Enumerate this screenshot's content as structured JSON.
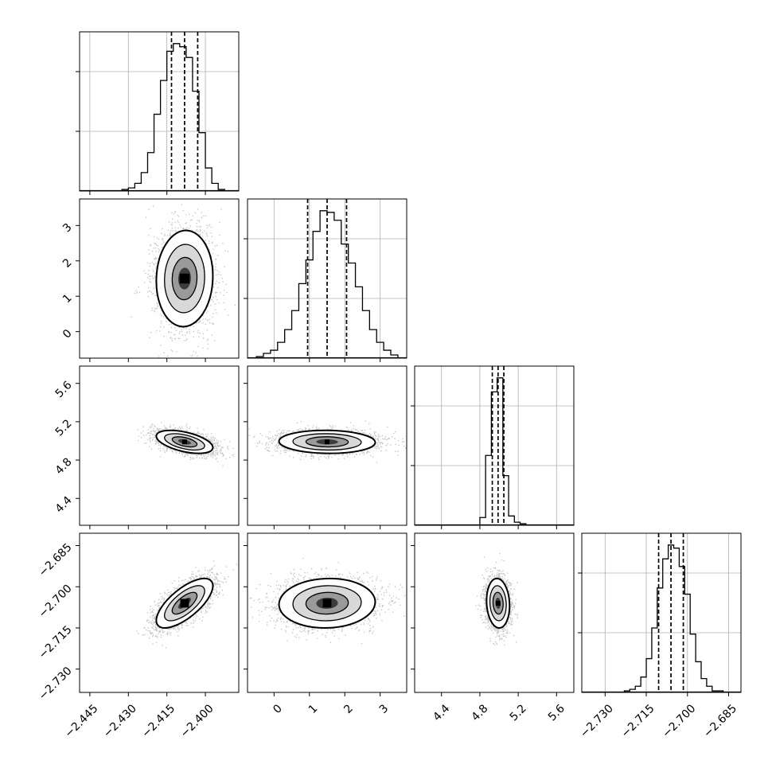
{
  "chart_data": {
    "type": "corner",
    "parameters": 4,
    "grid": true,
    "axes": [
      {
        "ticks": [
          -2.445,
          -2.43,
          -2.415,
          -2.4
        ],
        "tick_labels": [
          "−2.445",
          "−2.430",
          "−2.415",
          "−2.400"
        ],
        "lim": [
          -2.449,
          -2.387
        ]
      },
      {
        "ticks": [
          0,
          1,
          2,
          3
        ],
        "tick_labels": [
          "0",
          "1",
          "2",
          "3"
        ],
        "lim": [
          -0.75,
          3.75
        ]
      },
      {
        "ticks": [
          4.4,
          4.8,
          5.2,
          5.6
        ],
        "tick_labels": [
          "4.4",
          "4.8",
          "5.2",
          "5.6"
        ],
        "lim": [
          4.12,
          5.78
        ]
      },
      {
        "ticks": [
          -2.73,
          -2.715,
          -2.7,
          -2.685
        ],
        "tick_labels": [
          "−2.730",
          "−2.715",
          "−2.700",
          "−2.685"
        ],
        "lim": [
          -2.7385,
          -2.6805
        ]
      }
    ],
    "histograms": [
      {
        "param": 0,
        "quantiles": [
          -2.4132,
          -2.4081,
          -2.403
        ],
        "bin_edges": [
          -2.4325,
          -2.43,
          -2.4275,
          -2.425,
          -2.4225,
          -2.42,
          -2.4175,
          -2.415,
          -2.4125,
          -2.41,
          -2.4075,
          -2.405,
          -2.4025,
          -2.4,
          -2.3975,
          -2.395,
          -2.3925
        ],
        "counts": [
          1,
          2,
          5,
          12,
          25,
          50,
          72,
          91,
          96,
          94,
          87,
          65,
          38,
          15,
          5,
          1
        ]
      },
      {
        "param": 1,
        "quantiles": [
          0.95,
          1.5,
          2.05
        ],
        "bin_edges": [
          -0.5,
          -0.3,
          -0.1,
          0.1,
          0.3,
          0.5,
          0.7,
          0.9,
          1.1,
          1.3,
          1.5,
          1.7,
          1.9,
          2.1,
          2.3,
          2.5,
          2.7,
          2.9,
          3.1,
          3.3,
          3.5
        ],
        "counts": [
          1,
          3,
          5,
          10,
          18,
          30,
          47,
          62,
          80,
          93,
          92,
          87,
          72,
          60,
          45,
          30,
          18,
          10,
          5,
          2
        ]
      },
      {
        "param": 2,
        "quantiles": [
          4.93,
          4.99,
          5.05
        ],
        "bin_edges": [
          4.8,
          4.86,
          4.92,
          4.98,
          5.04,
          5.1,
          5.16,
          5.22,
          5.28
        ],
        "counts": [
          5,
          45,
          86,
          95,
          32,
          6,
          2,
          1
        ]
      },
      {
        "param": 3,
        "quantiles": [
          -2.7105,
          -2.706,
          -2.7015
        ],
        "bin_edges": [
          -2.723,
          -2.721,
          -2.719,
          -2.717,
          -2.715,
          -2.713,
          -2.711,
          -2.709,
          -2.707,
          -2.705,
          -2.703,
          -2.701,
          -2.699,
          -2.697,
          -2.695,
          -2.693,
          -2.691,
          -2.689,
          -2.687
        ],
        "counts": [
          1,
          2,
          4,
          10,
          22,
          42,
          68,
          87,
          96,
          94,
          82,
          64,
          38,
          20,
          9,
          4,
          1,
          1
        ]
      }
    ],
    "panels_2d": [
      {
        "x": 0,
        "y": 1,
        "center": [
          -2.4081,
          1.5
        ],
        "sd": [
          0.0055,
          0.68
        ],
        "corr": 0.05
      },
      {
        "x": 0,
        "y": 2,
        "center": [
          -2.4081,
          4.99
        ],
        "sd": [
          0.0055,
          0.06
        ],
        "corr": -0.5
      },
      {
        "x": 1,
        "y": 2,
        "center": [
          1.5,
          4.99
        ],
        "sd": [
          0.68,
          0.06
        ],
        "corr": -0.05
      },
      {
        "x": 0,
        "y": 3,
        "center": [
          -2.4081,
          -2.706
        ],
        "sd": [
          0.0055,
          0.0045
        ],
        "corr": 0.7
      },
      {
        "x": 1,
        "y": 3,
        "center": [
          1.5,
          -2.706
        ],
        "sd": [
          0.68,
          0.0045
        ],
        "corr": 0.05
      },
      {
        "x": 2,
        "y": 3,
        "center": [
          4.99,
          -2.706
        ],
        "sd": [
          0.06,
          0.0045
        ],
        "corr": -0.1
      }
    ]
  }
}
